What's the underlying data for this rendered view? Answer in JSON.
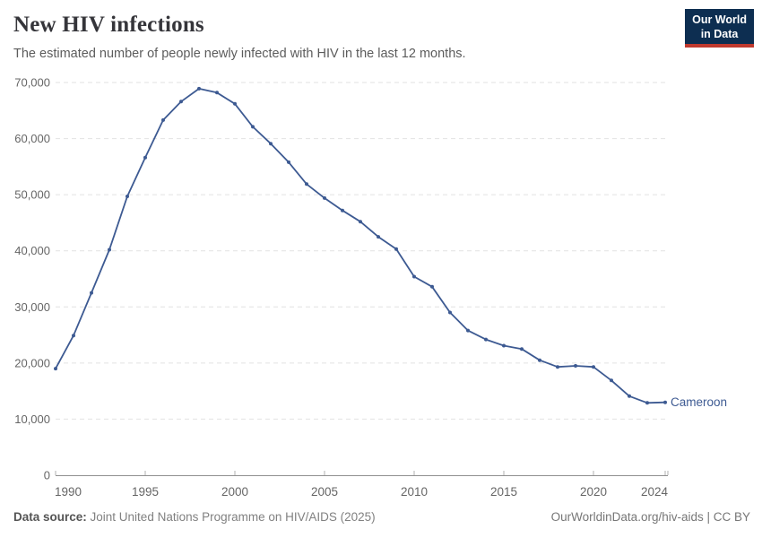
{
  "header": {
    "title": "New HIV infections",
    "subtitle": "The estimated number of people newly infected with HIV in the last 12 months.",
    "logo": {
      "line1": "Our World",
      "line2": "in Data"
    }
  },
  "chart_data": {
    "type": "line",
    "title": "New HIV infections",
    "xlabel": "",
    "ylabel": "",
    "x": [
      1990,
      1991,
      1992,
      1993,
      1994,
      1995,
      1996,
      1997,
      1998,
      1999,
      2000,
      2001,
      2002,
      2003,
      2004,
      2005,
      2006,
      2007,
      2008,
      2009,
      2010,
      2011,
      2012,
      2013,
      2014,
      2015,
      2016,
      2017,
      2018,
      2019,
      2020,
      2021,
      2022,
      2023,
      2024
    ],
    "series": [
      {
        "name": "Cameroon",
        "color": "#3d5a92",
        "values": [
          19000,
          24900,
          32500,
          40200,
          49700,
          56600,
          63300,
          66600,
          68900,
          68200,
          66200,
          62100,
          59100,
          55800,
          51900,
          49400,
          47200,
          45200,
          42500,
          40300,
          35400,
          33600,
          29000,
          25800,
          24200,
          23100,
          22500,
          20500,
          19300,
          19500,
          19300,
          16900,
          14100,
          12900,
          13000
        ]
      }
    ],
    "xlim": [
      1990,
      2024
    ],
    "ylim": [
      0,
      70000
    ],
    "yticks": [
      0,
      10000,
      20000,
      30000,
      40000,
      50000,
      60000,
      70000
    ],
    "xticks": [
      1990,
      1995,
      2000,
      2005,
      2010,
      2015,
      2020,
      2024
    ],
    "grid": "horizontal-dashed",
    "legend_position": "end-of-line-label"
  },
  "colors": {
    "line": "#3d5a92",
    "gridline": "#e2e2e2",
    "axis": "#8f8f8f",
    "tick": "#b0b0b0",
    "tick_label": "#666666"
  },
  "footer": {
    "source_label": "Data source:",
    "source_text": " Joint United Nations Programme on HIV/AIDS (2025)",
    "credit": "OurWorldinData.org/hiv-aids | CC BY"
  }
}
